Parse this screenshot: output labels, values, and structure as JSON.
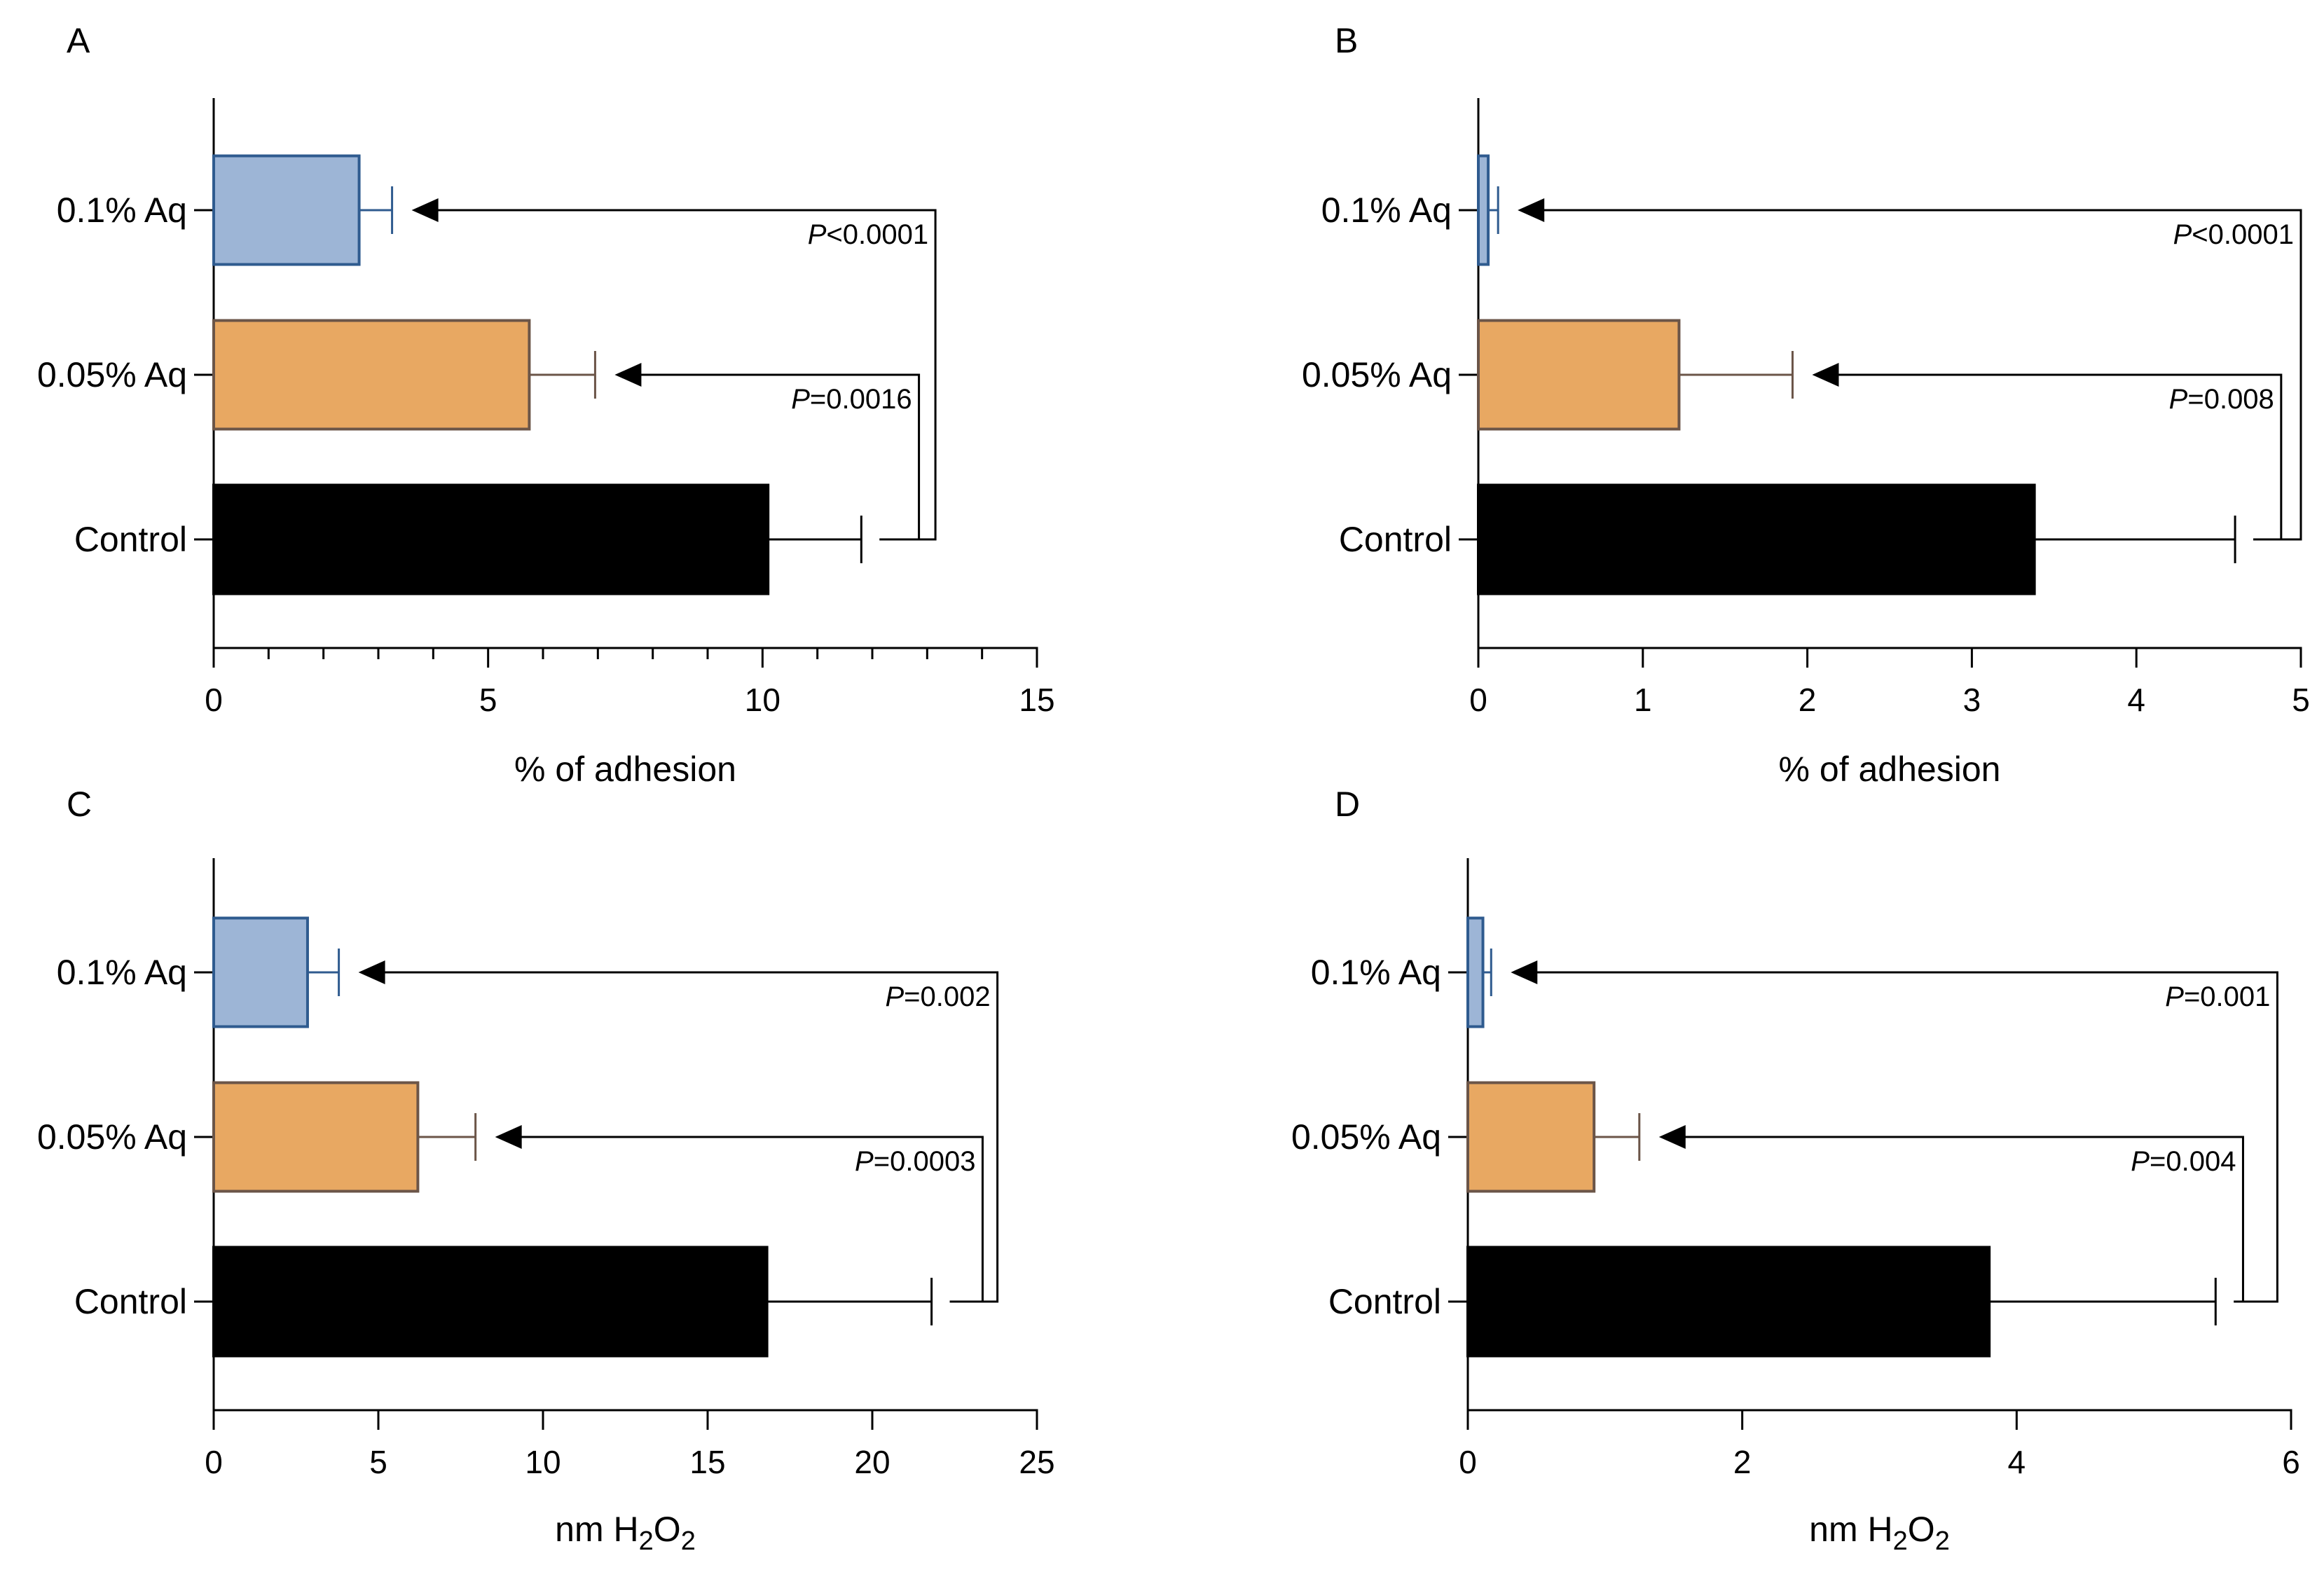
{
  "colors": {
    "control": "#000000",
    "aq_005": "#E8A862",
    "aq_005_edge": "#6b5548",
    "aq_01": "#9DB5D6",
    "aq_01_edge": "#2f5b8f",
    "axis": "#000000"
  },
  "chart_data": [
    {
      "panel": "A",
      "type": "bar",
      "orientation": "horizontal",
      "categories": [
        "Control",
        "0.05% Aq",
        "0.1% Aq"
      ],
      "values": [
        10.1,
        5.75,
        2.65
      ],
      "errors": [
        1.7,
        1.2,
        0.6
      ],
      "xlabel": "% of adhesion",
      "xlim": [
        0,
        15
      ],
      "xticks": [
        0,
        5,
        10,
        15
      ],
      "xtick_labels": [
        "0",
        "5",
        "10",
        "15"
      ],
      "minor_ticks": true,
      "comparisons": [
        {
          "category": "0.05% Aq",
          "label_prefix": "P",
          "label": "=0.0016"
        },
        {
          "category": "0.1% Aq",
          "label_prefix": "P",
          "label": "<0.0001"
        }
      ],
      "bracket_ends": [
        12.85,
        13.15
      ],
      "grid": false
    },
    {
      "panel": "B",
      "type": "bar",
      "orientation": "horizontal",
      "categories": [
        "Control",
        "0.05% Aq",
        "0.1% Aq"
      ],
      "values": [
        3.38,
        1.22,
        0.06
      ],
      "errors": [
        1.22,
        0.69,
        0.06
      ],
      "xlabel": "% of adhesion",
      "xlim": [
        0,
        5
      ],
      "xticks": [
        0,
        1,
        2,
        3,
        4,
        5
      ],
      "xtick_labels": [
        "0",
        "1",
        "2",
        "3",
        "4",
        "5"
      ],
      "minor_ticks": false,
      "comparisons": [
        {
          "category": "0.05% Aq",
          "label_prefix": "P",
          "label": "=0.008"
        },
        {
          "category": "0.1% Aq",
          "label_prefix": "P",
          "label": "<0.0001"
        }
      ],
      "bracket_ends": [
        4.88,
        5.0
      ],
      "grid": false
    },
    {
      "panel": "C",
      "type": "bar",
      "orientation": "horizontal",
      "categories": [
        "Control",
        "0.05% Aq",
        "0.1% Aq"
      ],
      "values": [
        16.8,
        6.2,
        2.85
      ],
      "errors": [
        5.0,
        1.75,
        0.95
      ],
      "xlabel": "nm H2O2",
      "xlim": [
        0,
        25
      ],
      "xticks": [
        0,
        5,
        10,
        15,
        20,
        25
      ],
      "xtick_labels": [
        "0",
        "5",
        "10",
        "15",
        "20",
        "25"
      ],
      "minor_ticks": false,
      "comparisons": [
        {
          "category": "0.05% Aq",
          "label_prefix": "P",
          "label": "=0.0003"
        },
        {
          "category": "0.1% Aq",
          "label_prefix": "P",
          "label": "=0.002"
        }
      ],
      "bracket_ends": [
        23.35,
        23.8
      ],
      "grid": false
    },
    {
      "panel": "D",
      "type": "bar",
      "orientation": "horizontal",
      "categories": [
        "Control",
        "0.05% Aq",
        "0.1% Aq"
      ],
      "values": [
        3.8,
        0.92,
        0.11
      ],
      "errors": [
        1.65,
        0.33,
        0.06
      ],
      "xlabel": "nm H2O2",
      "xlim": [
        0,
        6
      ],
      "xticks": [
        0,
        2,
        4,
        6
      ],
      "xtick_labels": [
        "0",
        "2",
        "4",
        "6"
      ],
      "minor_ticks": false,
      "comparisons": [
        {
          "category": "0.05% Aq",
          "label_prefix": "P",
          "label": "=0.004"
        },
        {
          "category": "0.1% Aq",
          "label_prefix": "P",
          "label": "=0.001"
        }
      ],
      "bracket_ends": [
        5.65,
        5.9
      ],
      "grid": false
    }
  ]
}
